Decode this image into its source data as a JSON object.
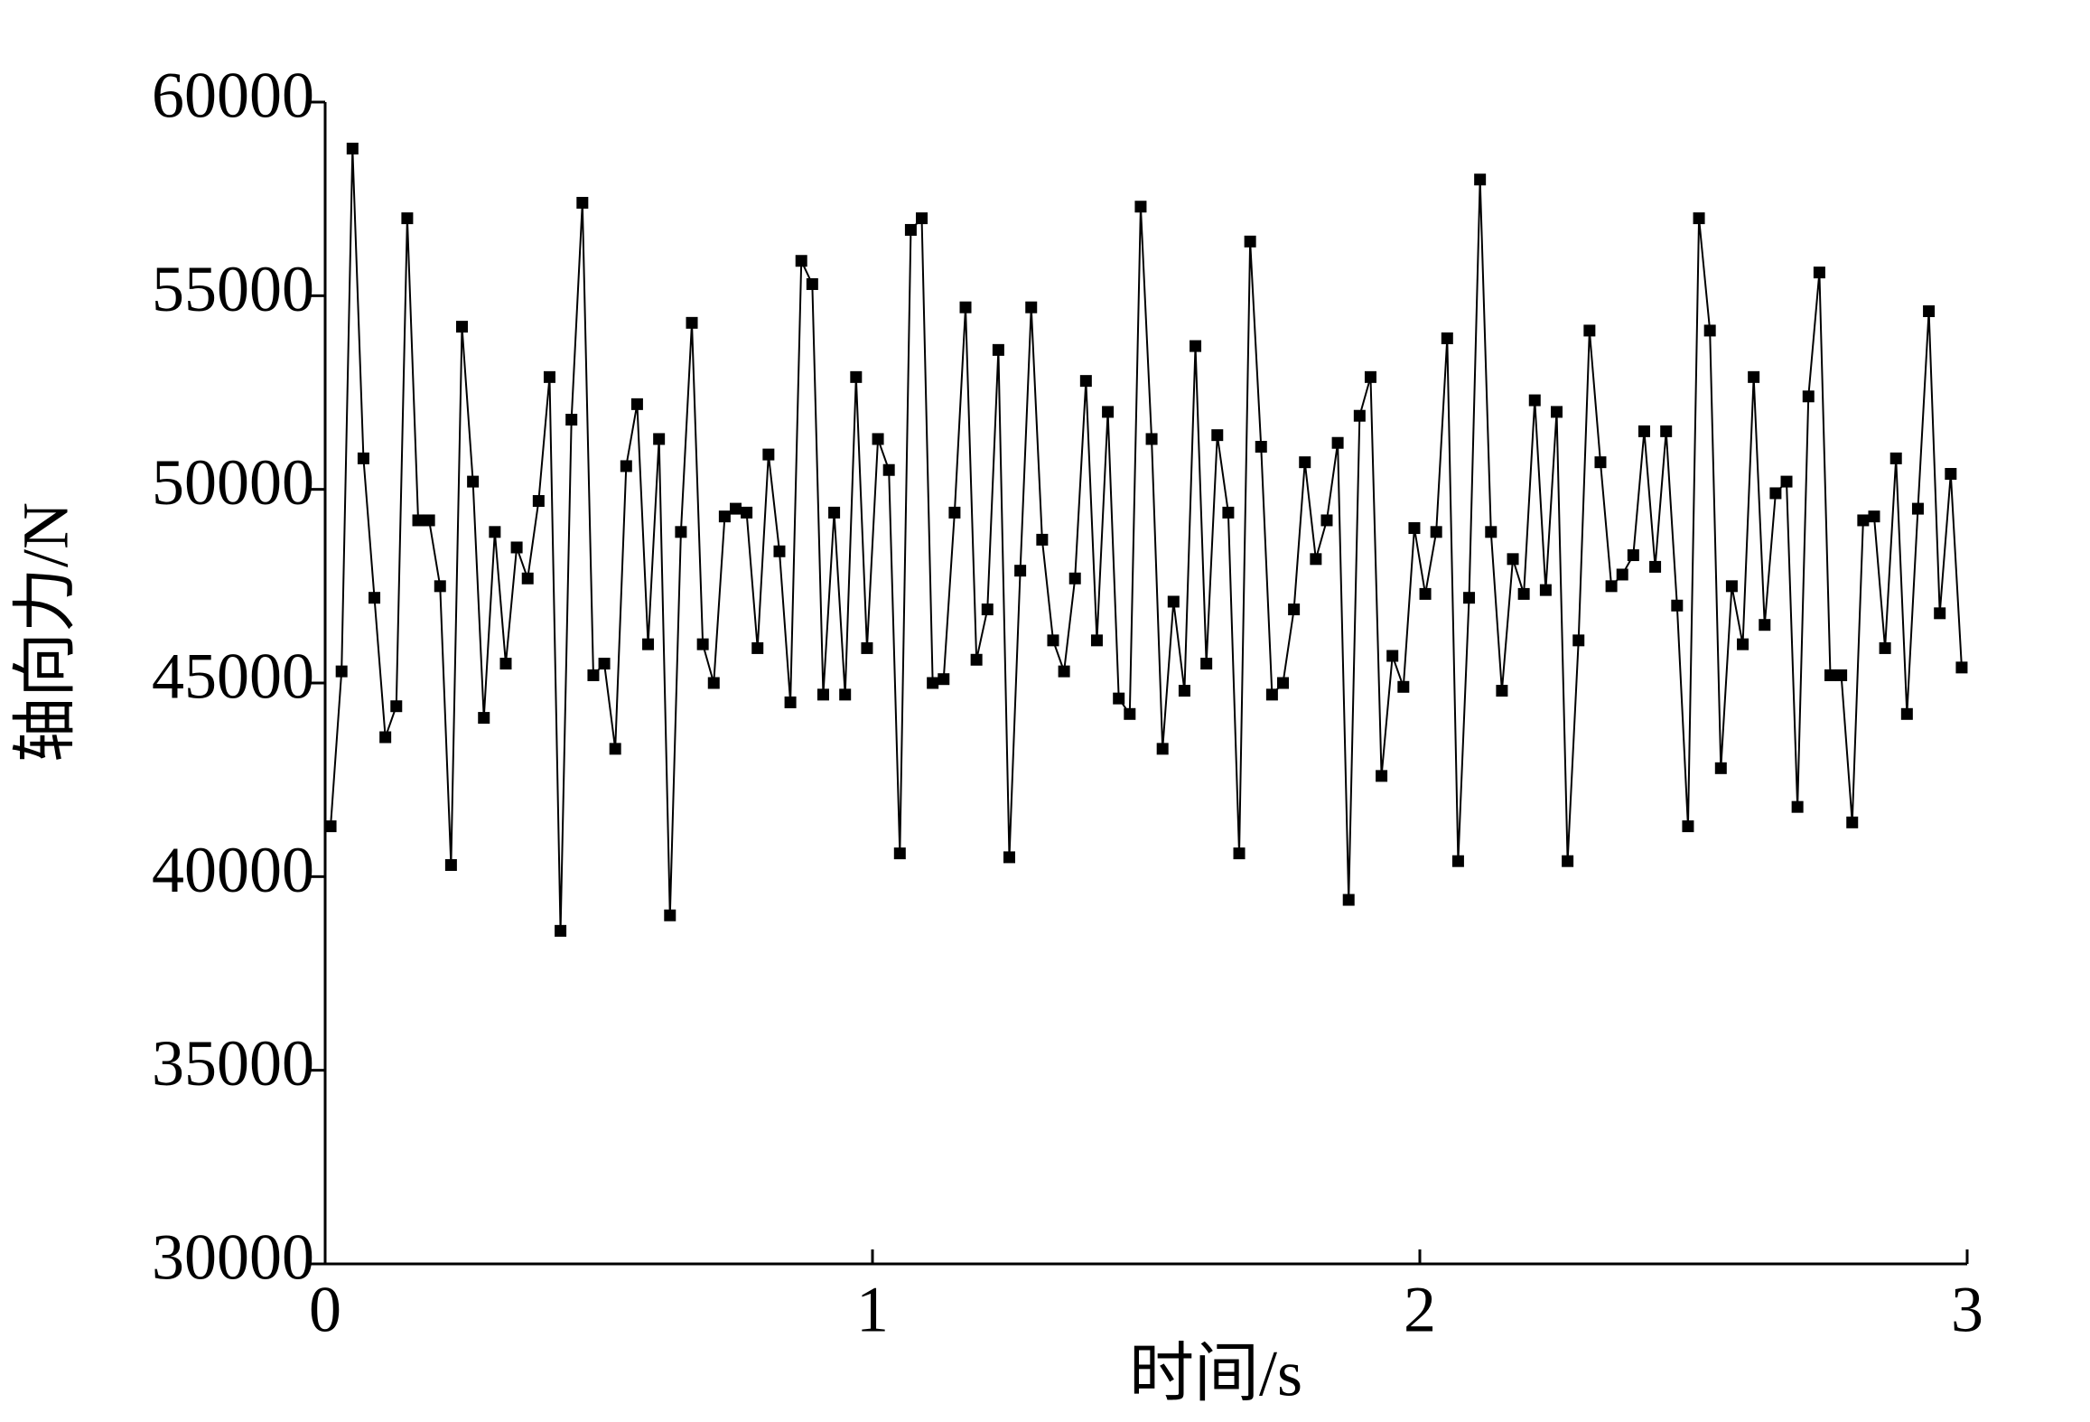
{
  "chart_data": {
    "type": "line",
    "xlabel": "时间/s",
    "ylabel": "轴向力/N",
    "xlim": [
      0,
      3
    ],
    "xticks": [
      0,
      1,
      2,
      3
    ],
    "ylim": [
      30000,
      60000
    ],
    "yticks": [
      30000,
      35000,
      40000,
      45000,
      50000,
      55000,
      60000
    ],
    "color": "#000000",
    "marker": "square",
    "x": [
      0.01,
      0.03,
      0.05,
      0.07,
      0.09,
      0.11,
      0.13,
      0.15,
      0.17,
      0.19,
      0.21,
      0.23,
      0.25,
      0.27,
      0.29,
      0.31,
      0.33,
      0.35,
      0.37,
      0.39,
      0.41,
      0.43,
      0.45,
      0.47,
      0.49,
      0.51,
      0.53,
      0.55,
      0.57,
      0.59,
      0.61,
      0.63,
      0.65,
      0.67,
      0.69,
      0.71,
      0.73,
      0.75,
      0.77,
      0.79,
      0.81,
      0.83,
      0.85,
      0.87,
      0.89,
      0.91,
      0.93,
      0.95,
      0.97,
      0.99,
      1.01,
      1.03,
      1.05,
      1.07,
      1.09,
      1.11,
      1.13,
      1.15,
      1.17,
      1.19,
      1.21,
      1.23,
      1.25,
      1.27,
      1.29,
      1.31,
      1.33,
      1.35,
      1.37,
      1.39,
      1.41,
      1.43,
      1.45,
      1.47,
      1.49,
      1.51,
      1.53,
      1.55,
      1.57,
      1.59,
      1.61,
      1.63,
      1.65,
      1.67,
      1.69,
      1.71,
      1.73,
      1.75,
      1.77,
      1.79,
      1.81,
      1.83,
      1.85,
      1.87,
      1.89,
      1.91,
      1.93,
      1.95,
      1.97,
      1.99,
      2.01,
      2.03,
      2.05,
      2.07,
      2.09,
      2.11,
      2.13,
      2.15,
      2.17,
      2.19,
      2.21,
      2.23,
      2.25,
      2.27,
      2.29,
      2.31,
      2.33,
      2.35,
      2.37,
      2.39,
      2.41,
      2.43,
      2.45,
      2.47,
      2.49,
      2.51,
      2.53,
      2.55,
      2.57,
      2.59,
      2.61,
      2.63,
      2.65,
      2.67,
      2.69,
      2.71,
      2.73,
      2.75,
      2.77,
      2.79,
      2.81,
      2.83,
      2.85,
      2.87,
      2.89,
      2.91,
      2.93,
      2.95,
      2.97,
      2.99
    ],
    "values": [
      41300,
      45300,
      58800,
      50800,
      47200,
      43600,
      44400,
      57000,
      49200,
      49200,
      47500,
      40300,
      54200,
      50200,
      44100,
      48900,
      45500,
      48500,
      47700,
      49700,
      52900,
      38600,
      51800,
      57400,
      45200,
      45500,
      43300,
      50600,
      52200,
      46000,
      51300,
      39000,
      48900,
      54300,
      46000,
      45000,
      49300,
      49500,
      49400,
      45900,
      50900,
      48400,
      44500,
      55900,
      55300,
      44700,
      49400,
      44700,
      52900,
      45900,
      51300,
      50500,
      40600,
      56700,
      57000,
      45000,
      45100,
      49400,
      54700,
      45600,
      46900,
      53600,
      40500,
      47900,
      54700,
      48700,
      46100,
      45300,
      47700,
      52800,
      46100,
      52000,
      44600,
      44200,
      57300,
      51300,
      43300,
      47100,
      44800,
      53700,
      45500,
      51400,
      49400,
      40600,
      56400,
      51100,
      44700,
      45000,
      46900,
      50700,
      48200,
      49200,
      51200,
      39400,
      51900,
      52900,
      42600,
      45700,
      44900,
      49000,
      47300,
      48900,
      53900,
      40400,
      47200,
      58000,
      48900,
      44800,
      48200,
      47300,
      52300,
      47400,
      52000,
      40400,
      46100,
      54100,
      50700,
      47500,
      47800,
      48300,
      51500,
      48000,
      51500,
      47000,
      41300,
      57000,
      54100,
      42800,
      47500,
      46000,
      52900,
      46500,
      49900,
      50200,
      41800,
      52400,
      55600,
      45200,
      45200,
      41400,
      49200,
      49300,
      45900,
      50800,
      44200,
      49500,
      54600,
      46800,
      50400,
      45400
    ]
  }
}
